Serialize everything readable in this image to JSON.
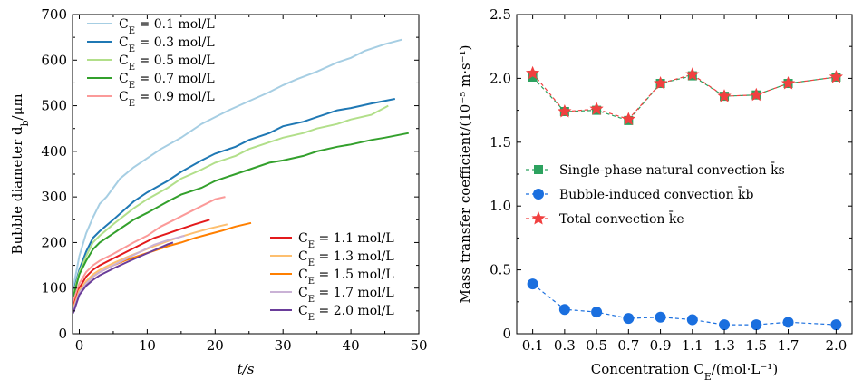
{
  "chart_data": [
    {
      "type": "line",
      "xlabel": "t/s",
      "ylabel": "Bubble diameter d_b/μm",
      "xlim": [
        -1,
        50
      ],
      "ylim": [
        0,
        700
      ],
      "x_ticks": [
        "0",
        "10",
        "20",
        "30",
        "40",
        "50"
      ],
      "y_ticks": [
        "0",
        "100",
        "200",
        "300",
        "400",
        "500",
        "600",
        "700"
      ],
      "legend_upper": "top-left",
      "legend_lower": "bottom-right",
      "series": [
        {
          "name": "C_E = 0.1 mol/L",
          "color": "#a6cee3",
          "group": "upper",
          "x": [
            -0.9,
            0,
            1,
            2,
            3,
            4,
            5,
            6,
            8,
            10,
            12,
            15,
            18,
            20,
            22,
            25,
            28,
            30,
            32,
            35,
            38,
            40,
            42,
            45,
            47.5
          ],
          "y": [
            100,
            170,
            220,
            255,
            285,
            300,
            320,
            340,
            365,
            385,
            405,
            430,
            460,
            475,
            490,
            510,
            530,
            545,
            558,
            575,
            595,
            605,
            620,
            635,
            645
          ]
        },
        {
          "name": "C_E = 0.3 mol/L",
          "color": "#1f78b4",
          "group": "upper",
          "x": [
            -0.9,
            0,
            1,
            2,
            3,
            5,
            8,
            10,
            13,
            15,
            18,
            20,
            23,
            25,
            28,
            30,
            33,
            35,
            38,
            40,
            43,
            46.5
          ],
          "y": [
            90,
            140,
            180,
            210,
            225,
            250,
            290,
            310,
            335,
            355,
            380,
            395,
            410,
            425,
            440,
            455,
            465,
            475,
            490,
            495,
            505,
            515
          ]
        },
        {
          "name": "C_E = 0.5 mol/L",
          "color": "#b2df8a",
          "group": "upper",
          "x": [
            -0.9,
            0,
            1,
            2,
            3,
            5,
            8,
            10,
            13,
            15,
            18,
            20,
            23,
            25,
            28,
            30,
            33,
            35,
            38,
            40,
            43,
            45.5
          ],
          "y": [
            85,
            135,
            170,
            200,
            215,
            240,
            275,
            295,
            320,
            340,
            360,
            375,
            390,
            405,
            420,
            430,
            440,
            450,
            460,
            470,
            480,
            500
          ]
        },
        {
          "name": "C_E = 0.7 mol/L",
          "color": "#33a02c",
          "group": "upper",
          "x": [
            -0.9,
            0,
            1,
            2,
            3,
            5,
            8,
            10,
            13,
            15,
            18,
            20,
            23,
            25,
            28,
            30,
            33,
            35,
            38,
            40,
            43,
            45,
            48.5
          ],
          "y": [
            80,
            130,
            160,
            185,
            200,
            220,
            250,
            265,
            290,
            305,
            320,
            335,
            350,
            360,
            375,
            380,
            390,
            400,
            410,
            415,
            425,
            430,
            440
          ]
        },
        {
          "name": "C_E = 0.9 mol/L",
          "color": "#fb9a99",
          "group": "upper",
          "x": [
            -0.9,
            0,
            1,
            2,
            3,
            5,
            8,
            10,
            12,
            14,
            16,
            18,
            20,
            21.5
          ],
          "y": [
            70,
            110,
            135,
            150,
            160,
            175,
            200,
            215,
            235,
            250,
            265,
            280,
            295,
            300
          ]
        },
        {
          "name": "C_E = 1.1 mol/L",
          "color": "#e31a1c",
          "group": "lower",
          "x": [
            -0.9,
            0,
            1,
            2,
            3,
            5,
            7,
            9,
            11,
            13,
            15,
            17,
            19.2
          ],
          "y": [
            60,
            100,
            125,
            140,
            150,
            165,
            180,
            195,
            210,
            220,
            230,
            240,
            250
          ]
        },
        {
          "name": "C_E = 1.3 mol/L",
          "color": "#fdbf6f",
          "group": "lower",
          "x": [
            -0.9,
            0,
            1,
            2,
            3,
            5,
            7,
            9,
            11,
            13,
            15,
            17,
            19,
            21.8
          ],
          "y": [
            55,
            95,
            115,
            130,
            140,
            155,
            168,
            180,
            192,
            203,
            213,
            222,
            230,
            240
          ]
        },
        {
          "name": "C_E = 1.5 mol/L",
          "color": "#ff7f00",
          "group": "lower",
          "x": [
            -0.9,
            0,
            1,
            2,
            3,
            5,
            7,
            9,
            11,
            13,
            15,
            17,
            19,
            21,
            23,
            25.3
          ],
          "y": [
            50,
            90,
            110,
            125,
            135,
            150,
            162,
            172,
            182,
            192,
            200,
            210,
            218,
            226,
            235,
            243
          ]
        },
        {
          "name": "C_E = 1.7 mol/L",
          "color": "#cab2d6",
          "group": "lower",
          "x": [
            -0.9,
            0,
            1,
            2,
            3,
            5,
            7,
            9,
            11,
            13,
            15.5
          ],
          "y": [
            50,
            90,
            110,
            125,
            135,
            150,
            165,
            180,
            195,
            205,
            215
          ]
        },
        {
          "name": "C_E = 2.0 mol/L",
          "color": "#6a3d9a",
          "group": "lower",
          "x": [
            -0.9,
            0,
            1,
            2,
            3,
            5,
            7,
            9,
            11,
            13,
            13.8
          ],
          "y": [
            45,
            85,
            105,
            118,
            128,
            143,
            157,
            170,
            183,
            196,
            200
          ]
        }
      ]
    },
    {
      "type": "line",
      "xlabel": "Concentration C_E/(mol·L⁻¹)",
      "ylabel": "Mass transfer coefficient/(10⁻⁵ m·s⁻¹)",
      "categories": [
        "0.1",
        "0.3",
        "0.5",
        "0.7",
        "0.9",
        "1.1",
        "1.3",
        "1.5",
        "1.7",
        "2.0"
      ],
      "ylim": [
        0,
        2.5
      ],
      "y_ticks": [
        "0",
        "0.5",
        "1.0",
        "1.5",
        "2.0",
        "2.5"
      ],
      "legend": "center-left",
      "series": [
        {
          "name": "Single-phase natural convection k̄s",
          "color": "#2ca25f",
          "marker": "square",
          "values": [
            2.01,
            1.74,
            1.75,
            1.67,
            1.96,
            2.02,
            1.86,
            1.87,
            1.96,
            2.01
          ]
        },
        {
          "name": "Bubble-induced convection k̄b",
          "color": "#1a6fdf",
          "marker": "circle",
          "values": [
            0.39,
            0.19,
            0.17,
            0.12,
            0.13,
            0.11,
            0.07,
            0.07,
            0.09,
            0.07
          ]
        },
        {
          "name": "Total convection k̄e",
          "color": "#f14040",
          "marker": "star",
          "values": [
            2.04,
            1.74,
            1.76,
            1.68,
            1.96,
            2.03,
            1.86,
            1.87,
            1.96,
            2.01
          ]
        }
      ]
    }
  ]
}
